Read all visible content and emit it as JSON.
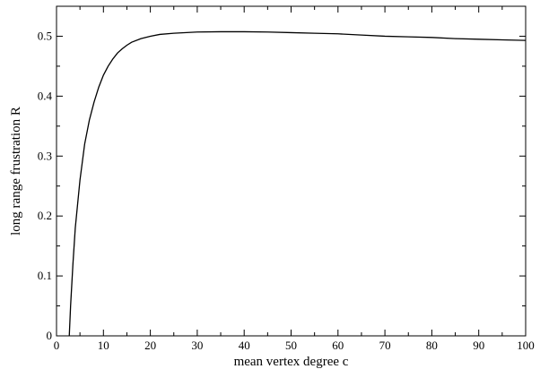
{
  "chart_data": {
    "type": "line",
    "xlabel": "mean vertex degree c",
    "ylabel": "long range frustration R",
    "xlim": [
      0,
      100
    ],
    "ylim": [
      0,
      0.55
    ],
    "xticks": [
      0,
      10,
      20,
      30,
      40,
      50,
      60,
      70,
      80,
      90,
      100
    ],
    "yticks": [
      0,
      0.1,
      0.2,
      0.3,
      0.4,
      0.5
    ],
    "xtick_labels": [
      "0",
      "10",
      "20",
      "30",
      "40",
      "50",
      "60",
      "70",
      "80",
      "90",
      "100"
    ],
    "ytick_labels": [
      "0",
      "0.1",
      "0.2",
      "0.3",
      "0.4",
      "0.5"
    ],
    "grid": false,
    "series": [
      {
        "color": "#000000",
        "points": [
          [
            2.72,
            0.0
          ],
          [
            3.0,
            0.05
          ],
          [
            3.5,
            0.12
          ],
          [
            4.0,
            0.18
          ],
          [
            4.5,
            0.22
          ],
          [
            5.0,
            0.26
          ],
          [
            5.5,
            0.29
          ],
          [
            6.0,
            0.32
          ],
          [
            7.0,
            0.36
          ],
          [
            8.0,
            0.39
          ],
          [
            9.0,
            0.415
          ],
          [
            10.0,
            0.435
          ],
          [
            11.0,
            0.45
          ],
          [
            12.0,
            0.462
          ],
          [
            13.0,
            0.472
          ],
          [
            14.0,
            0.479
          ],
          [
            15.0,
            0.485
          ],
          [
            16.0,
            0.49
          ],
          [
            18.0,
            0.496
          ],
          [
            20.0,
            0.5
          ],
          [
            22.0,
            0.503
          ],
          [
            25.0,
            0.505
          ],
          [
            30.0,
            0.507
          ],
          [
            35.0,
            0.5075
          ],
          [
            40.0,
            0.5075
          ],
          [
            45.0,
            0.507
          ],
          [
            50.0,
            0.506
          ],
          [
            55.0,
            0.505
          ],
          [
            60.0,
            0.504
          ],
          [
            65.0,
            0.502
          ],
          [
            70.0,
            0.5
          ],
          [
            75.0,
            0.499
          ],
          [
            80.0,
            0.498
          ],
          [
            85.0,
            0.496
          ],
          [
            90.0,
            0.495
          ],
          [
            95.0,
            0.494
          ],
          [
            100.0,
            0.493
          ]
        ]
      }
    ]
  }
}
